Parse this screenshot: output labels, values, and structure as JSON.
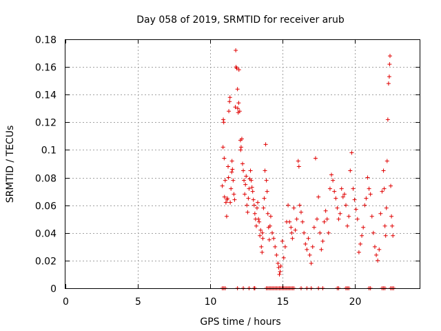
{
  "chart_data": {
    "type": "scatter",
    "title": "Day 058 of 2019, SRMTID for receiver arub",
    "xlabel": "GPS time / hours",
    "ylabel": "SRMTID / TECUs",
    "xlim": [
      0,
      24.5
    ],
    "ylim": [
      0,
      0.18
    ],
    "xticks": [
      0,
      5,
      10,
      15,
      20
    ],
    "yticks": [
      0,
      0.02,
      0.04,
      0.06,
      0.08,
      0.1,
      0.12,
      0.14,
      0.16,
      0.18
    ],
    "xtick_labels": [
      "0",
      "5",
      "10",
      "15",
      "20"
    ],
    "ytick_labels": [
      "0",
      "0.02",
      "0.04",
      "0.06",
      "0.08",
      "0.1",
      "0.12",
      "0.14",
      "0.16",
      "0.18"
    ],
    "grid": true,
    "marker": "plus",
    "color": "#e00000",
    "series": [
      {
        "name": "SRMTID",
        "points": [
          [
            10.85,
            0.0
          ],
          [
            10.95,
            0.0
          ],
          [
            11.05,
            0.0
          ],
          [
            11.9,
            0.0
          ],
          [
            12.3,
            0.0
          ],
          [
            12.7,
            0.0
          ],
          [
            13.05,
            0.0
          ],
          [
            13.1,
            0.0
          ],
          [
            13.9,
            0.0
          ],
          [
            14.0,
            0.0
          ],
          [
            14.1,
            0.0
          ],
          [
            14.2,
            0.0
          ],
          [
            14.3,
            0.0
          ],
          [
            14.4,
            0.0
          ],
          [
            14.5,
            0.0
          ],
          [
            14.6,
            0.0
          ],
          [
            14.7,
            0.0
          ],
          [
            14.8,
            0.0
          ],
          [
            14.9,
            0.0
          ],
          [
            15.0,
            0.0
          ],
          [
            15.1,
            0.0
          ],
          [
            15.2,
            0.0
          ],
          [
            15.3,
            0.0
          ],
          [
            15.4,
            0.0
          ],
          [
            15.5,
            0.0
          ],
          [
            15.6,
            0.0
          ],
          [
            15.7,
            0.0
          ],
          [
            15.8,
            0.0
          ],
          [
            16.3,
            0.0
          ],
          [
            16.7,
            0.0
          ],
          [
            17.0,
            0.0
          ],
          [
            17.5,
            0.0
          ],
          [
            17.8,
            0.0
          ],
          [
            18.8,
            0.0
          ],
          [
            18.9,
            0.0
          ],
          [
            19.4,
            0.0
          ],
          [
            19.5,
            0.0
          ],
          [
            19.6,
            0.0
          ],
          [
            21.0,
            0.0
          ],
          [
            21.1,
            0.0
          ],
          [
            21.9,
            0.0
          ],
          [
            22.0,
            0.0
          ],
          [
            22.1,
            0.0
          ],
          [
            22.5,
            0.0
          ],
          [
            22.6,
            0.0
          ],
          [
            22.7,
            0.0
          ],
          [
            10.85,
            0.074
          ],
          [
            10.9,
            0.102
          ],
          [
            10.92,
            0.122
          ],
          [
            10.95,
            0.12
          ],
          [
            10.98,
            0.094
          ],
          [
            11.0,
            0.066
          ],
          [
            11.05,
            0.078
          ],
          [
            11.1,
            0.062
          ],
          [
            11.15,
            0.052
          ],
          [
            11.18,
            0.064
          ],
          [
            11.2,
            0.065
          ],
          [
            11.25,
            0.088
          ],
          [
            11.28,
            0.08
          ],
          [
            11.3,
            0.128
          ],
          [
            11.35,
            0.135
          ],
          [
            11.38,
            0.138
          ],
          [
            11.4,
            0.062
          ],
          [
            11.45,
            0.072
          ],
          [
            11.5,
            0.084
          ],
          [
            11.52,
            0.092
          ],
          [
            11.55,
            0.086
          ],
          [
            11.6,
            0.078
          ],
          [
            11.65,
            0.068
          ],
          [
            11.7,
            0.064
          ],
          [
            11.75,
            0.131
          ],
          [
            11.78,
            0.172
          ],
          [
            11.8,
            0.16
          ],
          [
            11.85,
            0.159
          ],
          [
            11.9,
            0.144
          ],
          [
            11.92,
            0.13
          ],
          [
            11.95,
            0.127
          ],
          [
            11.98,
            0.134
          ],
          [
            12.0,
            0.158
          ],
          [
            12.05,
            0.128
          ],
          [
            12.1,
            0.107
          ],
          [
            12.12,
            0.1
          ],
          [
            12.15,
            0.102
          ],
          [
            12.2,
            0.108
          ],
          [
            12.25,
            0.09
          ],
          [
            12.3,
            0.085
          ],
          [
            12.35,
            0.078
          ],
          [
            12.4,
            0.068
          ],
          [
            12.45,
            0.075
          ],
          [
            12.5,
            0.081
          ],
          [
            12.55,
            0.06
          ],
          [
            12.6,
            0.055
          ],
          [
            12.65,
            0.065
          ],
          [
            12.7,
            0.072
          ],
          [
            12.75,
            0.079
          ],
          [
            12.8,
            0.085
          ],
          [
            12.85,
            0.078
          ],
          [
            12.9,
            0.073
          ],
          [
            12.95,
            0.07
          ],
          [
            13.0,
            0.064
          ],
          [
            13.05,
            0.06
          ],
          [
            13.1,
            0.054
          ],
          [
            13.15,
            0.05
          ],
          [
            13.2,
            0.045
          ],
          [
            13.25,
            0.058
          ],
          [
            13.3,
            0.062
          ],
          [
            13.35,
            0.05
          ],
          [
            13.4,
            0.048
          ],
          [
            13.45,
            0.038
          ],
          [
            13.5,
            0.042
          ],
          [
            13.55,
            0.03
          ],
          [
            13.6,
            0.026
          ],
          [
            13.62,
            0.04
          ],
          [
            13.65,
            0.036
          ],
          [
            13.7,
            0.058
          ],
          [
            13.75,
            0.065
          ],
          [
            13.8,
            0.085
          ],
          [
            13.85,
            0.104
          ],
          [
            13.9,
            0.078
          ],
          [
            13.95,
            0.07
          ],
          [
            14.0,
            0.054
          ],
          [
            14.05,
            0.044
          ],
          [
            14.1,
            0.035
          ],
          [
            14.15,
            0.045
          ],
          [
            14.2,
            0.052
          ],
          [
            14.3,
            0.04
          ],
          [
            14.4,
            0.036
          ],
          [
            14.5,
            0.03
          ],
          [
            14.6,
            0.024
          ],
          [
            14.7,
            0.018
          ],
          [
            14.75,
            0.015
          ],
          [
            14.8,
            0.01
          ],
          [
            14.85,
            0.012
          ],
          [
            14.9,
            0.016
          ],
          [
            15.0,
            0.034
          ],
          [
            15.1,
            0.022
          ],
          [
            15.2,
            0.03
          ],
          [
            15.3,
            0.048
          ],
          [
            15.4,
            0.06
          ],
          [
            15.5,
            0.048
          ],
          [
            15.6,
            0.044
          ],
          [
            15.65,
            0.04
          ],
          [
            15.7,
            0.036
          ],
          [
            15.8,
            0.058
          ],
          [
            15.9,
            0.042
          ],
          [
            16.0,
            0.05
          ],
          [
            16.1,
            0.092
          ],
          [
            16.15,
            0.088
          ],
          [
            16.2,
            0.06
          ],
          [
            16.3,
            0.055
          ],
          [
            16.4,
            0.048
          ],
          [
            16.5,
            0.04
          ],
          [
            16.6,
            0.032
          ],
          [
            16.7,
            0.028
          ],
          [
            16.8,
            0.036
          ],
          [
            16.9,
            0.024
          ],
          [
            17.0,
            0.018
          ],
          [
            17.1,
            0.03
          ],
          [
            17.2,
            0.044
          ],
          [
            17.3,
            0.094
          ],
          [
            17.4,
            0.05
          ],
          [
            17.5,
            0.066
          ],
          [
            17.6,
            0.04
          ],
          [
            17.7,
            0.028
          ],
          [
            17.8,
            0.034
          ],
          [
            17.9,
            0.048
          ],
          [
            18.0,
            0.056
          ],
          [
            18.1,
            0.05
          ],
          [
            18.2,
            0.04
          ],
          [
            18.3,
            0.072
          ],
          [
            18.4,
            0.082
          ],
          [
            18.5,
            0.078
          ],
          [
            18.6,
            0.07
          ],
          [
            18.7,
            0.065
          ],
          [
            18.8,
            0.058
          ],
          [
            18.9,
            0.05
          ],
          [
            19.0,
            0.054
          ],
          [
            19.1,
            0.072
          ],
          [
            19.2,
            0.066
          ],
          [
            19.3,
            0.068
          ],
          [
            19.4,
            0.06
          ],
          [
            19.5,
            0.045
          ],
          [
            19.6,
            0.052
          ],
          [
            19.7,
            0.085
          ],
          [
            19.8,
            0.098
          ],
          [
            19.9,
            0.072
          ],
          [
            20.0,
            0.064
          ],
          [
            20.1,
            0.057
          ],
          [
            20.2,
            0.05
          ],
          [
            20.3,
            0.026
          ],
          [
            20.4,
            0.032
          ],
          [
            20.5,
            0.038
          ],
          [
            20.6,
            0.044
          ],
          [
            20.7,
            0.06
          ],
          [
            20.8,
            0.065
          ],
          [
            20.9,
            0.08
          ],
          [
            21.0,
            0.072
          ],
          [
            21.1,
            0.068
          ],
          [
            21.2,
            0.052
          ],
          [
            21.3,
            0.04
          ],
          [
            21.4,
            0.03
          ],
          [
            21.5,
            0.024
          ],
          [
            21.6,
            0.02
          ],
          [
            21.7,
            0.028
          ],
          [
            21.8,
            0.054
          ],
          [
            21.9,
            0.07
          ],
          [
            22.0,
            0.085
          ],
          [
            22.05,
            0.072
          ],
          [
            22.1,
            0.045
          ],
          [
            22.15,
            0.038
          ],
          [
            22.2,
            0.058
          ],
          [
            22.25,
            0.092
          ],
          [
            22.3,
            0.122
          ],
          [
            22.35,
            0.148
          ],
          [
            22.4,
            0.153
          ],
          [
            22.42,
            0.162
          ],
          [
            22.45,
            0.168
          ],
          [
            22.5,
            0.074
          ],
          [
            22.55,
            0.052
          ],
          [
            22.6,
            0.045
          ],
          [
            22.65,
            0.038
          ]
        ]
      }
    ]
  }
}
